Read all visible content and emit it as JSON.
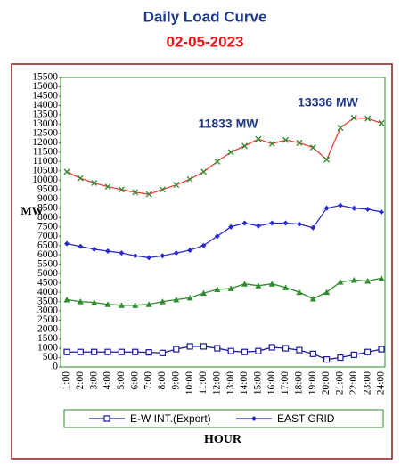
{
  "chart_data": {
    "type": "line",
    "title": "Daily Load Curve",
    "subtitle": "02-05-2023",
    "x_label": "HOUR",
    "y_label": "MW",
    "annotations": [
      "11833 MW",
      "13336 MW"
    ],
    "categories": [
      "1:00",
      "2:00",
      "3:00",
      "4:00",
      "5:00",
      "6:00",
      "7:00",
      "8:00",
      "9:00",
      "10:00",
      "11:00",
      "12:00",
      "13:00",
      "14:00",
      "15:00",
      "16:00",
      "17:00",
      "18:00",
      "19:00",
      "20:00",
      "21:00",
      "22:00",
      "23:00",
      "24:00"
    ],
    "series": [
      {
        "color": "#e8403a",
        "marker_color": "#2e8b2e",
        "marker": "x",
        "values": [
          10450,
          10100,
          9850,
          9650,
          9500,
          9350,
          9250,
          9500,
          9750,
          10050,
          10450,
          11000,
          11500,
          11833,
          12200,
          11950,
          12150,
          12000,
          11750,
          11100,
          12800,
          13336,
          13300,
          13050
        ]
      },
      {
        "name": "EAST GRID",
        "color": "#2a2ad0",
        "marker_color": "#2a2ad0",
        "marker": "diamond",
        "values": [
          6600,
          6450,
          6300,
          6200,
          6100,
          5950,
          5850,
          5950,
          6100,
          6250,
          6500,
          7000,
          7500,
          7700,
          7550,
          7700,
          7700,
          7650,
          7450,
          8500,
          8650,
          8500,
          8450,
          8300
        ]
      },
      {
        "color": "#2e8b2e",
        "marker_color": "#2e8b2e",
        "marker": "triangle",
        "values": [
          3600,
          3500,
          3450,
          3350,
          3300,
          3300,
          3350,
          3500,
          3600,
          3700,
          3950,
          4150,
          4200,
          4450,
          4350,
          4450,
          4250,
          4000,
          3650,
          4000,
          4550,
          4650,
          4600,
          4750
        ]
      },
      {
        "name": "E-W INT.(Export)",
        "color": "#1a1a9a",
        "marker_color": "#1a1a9a",
        "marker": "square",
        "values": [
          800,
          800,
          800,
          800,
          800,
          800,
          780,
          750,
          950,
          1100,
          1100,
          1000,
          850,
          800,
          850,
          1050,
          1000,
          900,
          700,
          400,
          500,
          650,
          800,
          950
        ]
      }
    ],
    "ylim": [
      0,
      15500
    ],
    "yticks": [
      0,
      500,
      1000,
      1500,
      2000,
      2500,
      3000,
      3500,
      4000,
      4500,
      5000,
      5500,
      6000,
      6500,
      7000,
      7500,
      8000,
      8500,
      9000,
      9500,
      10000,
      10500,
      11000,
      11500,
      12000,
      12500,
      13000,
      13500,
      14000,
      14500,
      15000,
      15500
    ],
    "grid": false,
    "legend": "bottom"
  }
}
